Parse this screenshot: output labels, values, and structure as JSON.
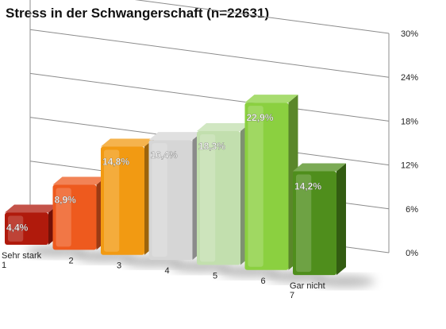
{
  "chart_data": {
    "type": "bar",
    "title": "Stress in der Schwangerschaft (n=22631)",
    "categories": [
      "Sehr stark\n1",
      "2",
      "3",
      "4",
      "5",
      "6",
      "Gar nicht\n7"
    ],
    "values": [
      4.4,
      8.9,
      14.8,
      16.4,
      18.3,
      22.9,
      14.2
    ],
    "data_labels": [
      "4,4%",
      "8,9%",
      "14,8%",
      "16,4%",
      "18,3%",
      "22,9%",
      "14,2%"
    ],
    "y_ticks": [
      "0%",
      "6%",
      "12%",
      "18%",
      "24%",
      "30%"
    ],
    "ylim": [
      0,
      30
    ],
    "grid": true,
    "legend": "none",
    "colors": [
      "#b01a0c",
      "#ee5a1e",
      "#f29a12",
      "#d6d6d6",
      "#c2dfae",
      "#8bd040",
      "#4f8e1c"
    ]
  }
}
